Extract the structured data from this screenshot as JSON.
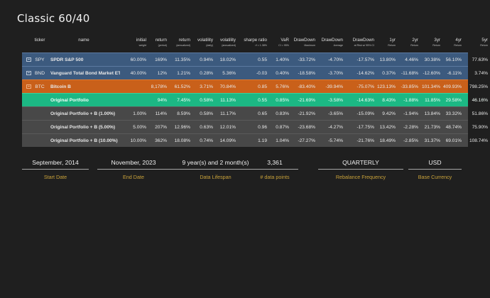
{
  "title": "Classic 60/40",
  "columns": [
    {
      "top": "",
      "sub": ""
    },
    {
      "top": "ticker",
      "sub": ""
    },
    {
      "top": "name",
      "sub": ""
    },
    {
      "top": "initial",
      "sub": "weight"
    },
    {
      "top": "return",
      "sub": "(period)"
    },
    {
      "top": "return",
      "sub": "(annualized)"
    },
    {
      "top": "volatility",
      "sub": "(daily)"
    },
    {
      "top": "volatility",
      "sub": "(annualized)"
    },
    {
      "top": "sharpe ratio",
      "sub": "rf = 1.38%"
    },
    {
      "top": "VaR",
      "sub": "CI = 95%"
    },
    {
      "top": "DrawDown",
      "sub": "Maximum"
    },
    {
      "top": "DrawDown",
      "sub": "Average"
    },
    {
      "top": "DrawDown",
      "sub": "at Risk w/ 95% CI"
    },
    {
      "top": "1yr",
      "sub": "Return"
    },
    {
      "top": "2yr",
      "sub": "Return"
    },
    {
      "top": "3yr",
      "sub": "Return"
    },
    {
      "top": "4yr",
      "sub": "Return"
    },
    {
      "top": "5yr",
      "sub": "Return"
    }
  ],
  "rows": [
    {
      "style": "blue",
      "checkbox": true,
      "ticker": "SPY",
      "name": "SPDR S&P 500",
      "cells": [
        "60.00%",
        "169%",
        "11.35%",
        "0.94%",
        "18.02%",
        "0.55",
        "1.40%",
        "-33.72%",
        "-4.70%",
        "-17.57%",
        "13.80%",
        "4.46%",
        "30.38%",
        "56.10%",
        "77.63%"
      ]
    },
    {
      "style": "blue",
      "checkbox": true,
      "ticker": "BND",
      "name": "Vanguard Total Bond Market ETF",
      "cells": [
        "40.00%",
        "12%",
        "1.21%",
        "0.28%",
        "5.36%",
        "-0.03",
        "0.40%",
        "-18.58%",
        "-3.70%",
        "-14.62%",
        "0.37%",
        "-11.68%",
        "-12.60%",
        "-6.11%",
        "3.74%"
      ]
    },
    {
      "style": "orange",
      "checkbox": true,
      "ticker": "BTC",
      "name": "Bitcoin B",
      "cells": [
        "",
        "8,178%",
        "61.52%",
        "3.71%",
        "70.84%",
        "0.85",
        "5.76%",
        "-83.40%",
        "-39.94%",
        "-75.07%",
        "123.13%",
        "-33.85%",
        "101.34%",
        "409.93%",
        "798.25%"
      ]
    },
    {
      "style": "green",
      "checkbox": false,
      "ticker": "",
      "name": "Original Portfolio",
      "cells": [
        "",
        "94%",
        "7.45%",
        "0.58%",
        "11.13%",
        "0.55",
        "0.85%",
        "-21.69%",
        "-3.58%",
        "-14.63%",
        "8.43%",
        "-1.88%",
        "11.85%",
        "29.58%",
        "46.16%"
      ]
    },
    {
      "style": "gray",
      "checkbox": false,
      "ticker": "",
      "name": "Original Portfolio + B (1.00%)",
      "cells": [
        "1.00%",
        "114%",
        "8.59%",
        "0.58%",
        "11.17%",
        "0.65",
        "0.83%",
        "-21.92%",
        "-3.65%",
        "-15.09%",
        "9.42%",
        "-1.94%",
        "13.84%",
        "33.32%",
        "51.86%"
      ]
    },
    {
      "style": "gray",
      "checkbox": false,
      "ticker": "",
      "name": "Original Portfolio + B (5.00%)",
      "cells": [
        "5.00%",
        "207%",
        "12.96%",
        "0.63%",
        "12.01%",
        "0.96",
        "0.87%",
        "-23.68%",
        "-4.27%",
        "-17.75%",
        "13.42%",
        "-2.28%",
        "21.73%",
        "48.74%",
        "75.90%"
      ]
    },
    {
      "style": "gray",
      "checkbox": false,
      "ticker": "",
      "name": "Original Portfolio + B (10.00%)",
      "cells": [
        "10.00%",
        "362%",
        "18.08%",
        "0.74%",
        "14.09%",
        "1.19",
        "1.04%",
        "-27.27%",
        "-5.74%",
        "-21.76%",
        "18.49%",
        "-2.85%",
        "31.37%",
        "69.01%",
        "108.74%"
      ]
    }
  ],
  "stats": [
    {
      "value": "September, 2014",
      "label": "Start Date"
    },
    {
      "value": "November, 2023",
      "label": "End Date"
    },
    {
      "value": "9 year(s) and 2 month(s)",
      "label": "Data Lifespan"
    },
    {
      "value": "3,361",
      "label": "# data points"
    },
    {
      "value": "QUARTERLY",
      "label": "Rebalance Frequency"
    },
    {
      "value": "USD",
      "label": "Base Currency"
    }
  ],
  "colors": {
    "background": "#1f1f1f",
    "asset_row": "#3c5a7e",
    "crypto_row": "#c9601a",
    "portfolio_row": "#1cb884",
    "variant_row": "#484848",
    "stat_label": "#c9a23a"
  }
}
